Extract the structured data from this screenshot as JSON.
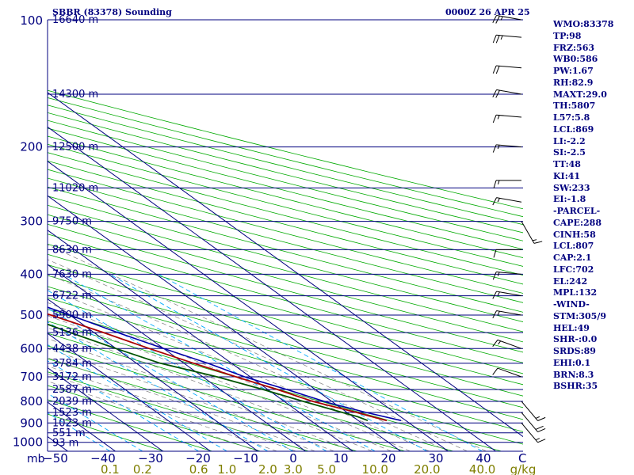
{
  "header": {
    "station": "SBBR (83378) Sounding",
    "time": "0000Z 26 APR 25"
  },
  "indices": [
    "WMO:83378",
    "TP:98",
    "FRZ:563",
    "WB0:586",
    "PW:1.67",
    "RH:82.9",
    "MAXT:29.0",
    "TH:5807",
    "L57:5.8",
    "LCL:869",
    "LI:-2.2",
    "SI:-2.5",
    "TT:48",
    "KI:41",
    "SW:233",
    "EI:-1.8",
    "-PARCEL-",
    "CAPE:288",
    "CINH:58",
    "LCL:807",
    "CAP:2.1",
    "LFC:702",
    "EL:242",
    "MPL:132",
    "-WIND-",
    "STM:305/9",
    "HEL:49",
    "SHR-:0.0",
    "SRDS:89",
    "EHI:0.1",
    "BRN:8.3",
    "BSHR:35"
  ],
  "colors": {
    "isobar": "#00007f",
    "isotherm": "#00007f",
    "dry_adiabat": "#00aa00",
    "moist_adiabat": "#7f7f7f",
    "mixing_ratio": "#00aaff",
    "temperature": "#aa0000",
    "dewpoint": "#005500",
    "parcel": "#0000aa",
    "axis_label": "#00007f",
    "mixing_label": "#7f7f00",
    "wind_barb": "#000000"
  },
  "chart_data": {
    "type": "skew-t",
    "pressure_unit": "mb",
    "temperature_unit": "°C",
    "mixing_ratio_unit": "g/kg",
    "pressure_ticks": [
      100,
      200,
      300,
      400,
      500,
      600,
      700,
      800,
      900,
      1000
    ],
    "temperature_ticks": [
      -50,
      -40,
      -30,
      -20,
      -10,
      0,
      10,
      20,
      30,
      40
    ],
    "temperature_tick_labels": [
      "−50",
      "−40",
      "−30",
      "−20",
      "−10",
      "0",
      "10",
      "20",
      "30",
      "40"
    ],
    "mixing_ratio_ticks": [
      0.1,
      0.2,
      0.6,
      1.0,
      2.0,
      3.0,
      5.0,
      10.0,
      20.0,
      40.0
    ],
    "mixing_ratio_tick_labels": [
      "0.1",
      "0.2",
      "0.6",
      "1.0",
      "2.0",
      "3.0",
      "5.0",
      "10.0",
      "20.0",
      "40.0"
    ],
    "mixing_ratio_axis_label": "g/kg",
    "isotherm_end_label": "C",
    "height_levels": [
      {
        "p": 100,
        "label": "16640 m"
      },
      {
        "p": 150,
        "label": "14300 m"
      },
      {
        "p": 200,
        "label": "12500 m"
      },
      {
        "p": 250,
        "label": "11020 m"
      },
      {
        "p": 300,
        "label": "9750 m"
      },
      {
        "p": 350,
        "label": "8630 m"
      },
      {
        "p": 400,
        "label": "7630 m"
      },
      {
        "p": 450,
        "label": "6722 m"
      },
      {
        "p": 500,
        "label": "5900 m"
      },
      {
        "p": 550,
        "label": "5136 m"
      },
      {
        "p": 600,
        "label": "4438 m"
      },
      {
        "p": 650,
        "label": "3784 m"
      },
      {
        "p": 700,
        "label": "3172 m"
      },
      {
        "p": 750,
        "label": "2587 m"
      },
      {
        "p": 800,
        "label": "2039 m"
      },
      {
        "p": 850,
        "label": "1523 m"
      },
      {
        "p": 900,
        "label": "1023 m"
      },
      {
        "p": 950,
        "label": "551 m"
      },
      {
        "p": 1000,
        "label": "93 m"
      }
    ],
    "series": [
      {
        "name": "temperature",
        "points": [
          [
            888,
            26
          ],
          [
            870,
            24
          ],
          [
            850,
            22
          ],
          [
            800,
            16
          ],
          [
            750,
            12
          ],
          [
            700,
            7
          ],
          [
            650,
            2
          ],
          [
            600,
            -3
          ],
          [
            550,
            -8
          ],
          [
            500,
            -14
          ],
          [
            480,
            -17
          ],
          [
            460,
            -17
          ],
          [
            450,
            -17
          ],
          [
            400,
            -23
          ],
          [
            350,
            -31
          ],
          [
            300,
            -39
          ],
          [
            250,
            -49
          ],
          [
            200,
            -60
          ],
          [
            170,
            -68
          ],
          [
            150,
            -74
          ],
          [
            130,
            -77
          ],
          [
            120,
            -79
          ],
          [
            110,
            -77
          ],
          [
            100,
            -73
          ]
        ]
      },
      {
        "name": "dewpoint",
        "points": [
          [
            888,
            22
          ],
          [
            870,
            21
          ],
          [
            850,
            19
          ],
          [
            800,
            14
          ],
          [
            750,
            9
          ],
          [
            700,
            3
          ],
          [
            650,
            -5
          ],
          [
            600,
            -10
          ],
          [
            550,
            -15
          ],
          [
            500,
            -20
          ],
          [
            460,
            -24
          ],
          [
            450,
            -26
          ],
          [
            400,
            -36
          ],
          [
            350,
            -42
          ],
          [
            340,
            -30
          ],
          [
            320,
            -39
          ],
          [
            300,
            -38
          ],
          [
            280,
            -45
          ],
          [
            270,
            -44
          ],
          [
            260,
            -46
          ],
          [
            250,
            -45
          ],
          [
            240,
            -58
          ],
          [
            200,
            -70
          ],
          [
            180,
            -76
          ],
          [
            160,
            -80
          ],
          [
            150,
            -78
          ],
          [
            140,
            -82
          ],
          [
            120,
            -85
          ],
          [
            100,
            -76
          ]
        ]
      },
      {
        "name": "parcel",
        "points": [
          [
            888,
            29
          ],
          [
            850,
            24
          ],
          [
            807,
            19
          ],
          [
            750,
            14
          ],
          [
            702,
            9
          ],
          [
            650,
            5
          ],
          [
            600,
            0
          ],
          [
            550,
            -5
          ],
          [
            500,
            -10
          ],
          [
            450,
            -16
          ],
          [
            400,
            -22
          ],
          [
            350,
            -29
          ],
          [
            300,
            -37
          ],
          [
            242,
            -48
          ],
          [
            200,
            -59
          ],
          [
            150,
            -73
          ],
          [
            120,
            -84
          ]
        ]
      }
    ],
    "wind_barbs": [
      {
        "p": 100,
        "dir": 100,
        "spd": 25
      },
      {
        "p": 110,
        "dir": 95,
        "spd": 25
      },
      {
        "p": 130,
        "dir": 95,
        "spd": 20
      },
      {
        "p": 150,
        "dir": 100,
        "spd": 20
      },
      {
        "p": 170,
        "dir": 95,
        "spd": 15
      },
      {
        "p": 200,
        "dir": 95,
        "spd": 15
      },
      {
        "p": 240,
        "dir": 90,
        "spd": 15
      },
      {
        "p": 270,
        "dir": 100,
        "spd": 15
      },
      {
        "p": 300,
        "dir": 330,
        "spd": 15
      },
      {
        "p": 350,
        "dir": 90,
        "spd": 10
      },
      {
        "p": 400,
        "dir": 95,
        "spd": 15
      },
      {
        "p": 450,
        "dir": 100,
        "spd": 15
      },
      {
        "p": 500,
        "dir": 100,
        "spd": 15
      },
      {
        "p": 600,
        "dir": 110,
        "spd": 15
      },
      {
        "p": 700,
        "dir": 110,
        "spd": 10
      },
      {
        "p": 800,
        "dir": 320,
        "spd": 15
      },
      {
        "p": 850,
        "dir": 320,
        "spd": 20
      },
      {
        "p": 900,
        "dir": 320,
        "spd": 15
      }
    ]
  }
}
